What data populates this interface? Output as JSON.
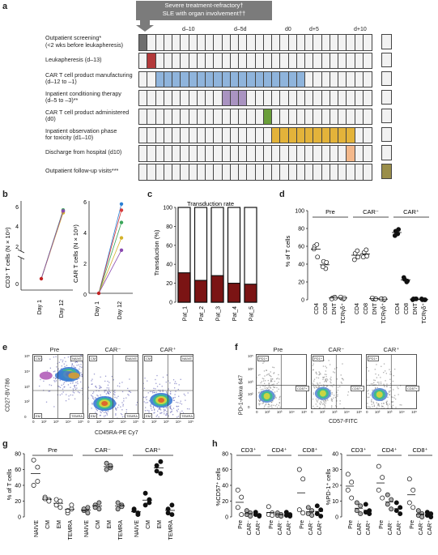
{
  "panels": {
    "a": "a",
    "b": "b",
    "c": "c",
    "d": "d",
    "e": "e",
    "f": "f",
    "g": "g",
    "h": "h"
  },
  "panel_a": {
    "header_line1": "Severe treatment-refractory†",
    "header_line2": "SLE with organ involvement††",
    "days": [
      "d–10",
      "d–5d",
      "d0",
      "d+5",
      "d+10"
    ],
    "rows": [
      {
        "label1": "Outpatient screening*",
        "label2": "(<2 wks before leukapheresis)",
        "color": "#6e6e6e"
      },
      {
        "label1": "Leukapheresis (d–13)",
        "label2": "",
        "color": "#b3393a"
      },
      {
        "label1": "CAR T cell product manufacturing",
        "label2": "(d–12 to –1)",
        "color": "#8fb4dc"
      },
      {
        "label1": "Inpatient conditioning therapy",
        "label2": "(d–5 to –3)**",
        "color": "#a993c1"
      },
      {
        "label1": "CAR T cell product administered",
        "label2": "(d0)",
        "color": "#6a9e3a"
      },
      {
        "label1": "Inpatient observation phase",
        "label2": "for toxicity (d1–10)",
        "color": "#e3b33a"
      },
      {
        "label1": "Discharge from hospital (d10)",
        "label2": "",
        "color": "#f3b88b"
      },
      {
        "label1": "Outpatient follow-up visits***",
        "label2": "",
        "color": "#9a8e4a"
      }
    ]
  },
  "panel_b": {
    "left_ylabel": "CD3⁺ T cells (N × 10⁹)",
    "right_ylabel": "CAR T cells (N × 10⁸)",
    "left_ticks": [
      "0",
      "2",
      "4",
      "6"
    ],
    "right_ticks": [
      "0",
      "2",
      "4",
      "6"
    ],
    "x_categories": [
      "Day 1",
      "Day 12"
    ]
  },
  "panel_c": {
    "title": "Transduction rate",
    "ylabel": "Transduction (%)",
    "yticks": [
      "0",
      "20",
      "40",
      "60",
      "80",
      "100"
    ],
    "categories": [
      "Pat_1",
      "Pat_2",
      "Pat_3",
      "Pat_4",
      "Pat_5"
    ]
  },
  "panel_d": {
    "ylabel": "% of T cells",
    "yticks": [
      "0",
      "20",
      "40",
      "60",
      "80",
      "100"
    ],
    "groups": [
      "Pre",
      "CAR⁻",
      "CAR⁺"
    ],
    "xcats": [
      "CD4",
      "CD8",
      "DNT",
      "TCRγδ⁺"
    ]
  },
  "panel_e": {
    "ylabel": "CD27-BV786",
    "xlabel": "CD45RA-PE Cy7",
    "titles": [
      "Pre",
      "CAR⁻",
      "CAR⁺"
    ],
    "gates": [
      "CM",
      "NAIVE",
      "EM",
      "TEMRA"
    ],
    "ticks": [
      "0",
      "10²",
      "10³",
      "10⁴",
      "10⁵"
    ]
  },
  "panel_f": {
    "ylabel": "PD-1-Alexa 647",
    "xlabel": "CD57-FITC",
    "titles": [
      "Pre",
      "CAR⁻",
      "CAR⁺"
    ],
    "gates": [
      "PD1+",
      "CD57+"
    ],
    "ticks": [
      "0",
      "10²",
      "10³",
      "10⁴",
      "10⁵"
    ]
  },
  "panel_g": {
    "ylabel": "% of T cells",
    "yticks": [
      "0",
      "20",
      "40",
      "60",
      "80"
    ],
    "groups": [
      "Pre",
      "CAR⁻",
      "CAR⁺"
    ],
    "xcats": [
      "NAIVE",
      "CM",
      "EM",
      "TEMRA"
    ]
  },
  "panel_h": {
    "left_ylabel": "%CD57⁺ cells",
    "right_ylabel": "%PD-1⁺ cells",
    "left_yticks": [
      "0",
      "20",
      "40",
      "60",
      "80"
    ],
    "right_yticks": [
      "0",
      "10",
      "20",
      "30",
      "40"
    ],
    "groups": [
      "CD3⁺",
      "CD4⁺",
      "CD8⁺"
    ],
    "xcats": [
      "Pre",
      "CAR⁻",
      "CAR⁺"
    ]
  },
  "chart_data": [
    {
      "type": "line",
      "panel": "b-left",
      "x": [
        "Day 1",
        "Day 12"
      ],
      "ylim": [
        0,
        6.5
      ],
      "series": [
        {
          "values": [
            0.1,
            5.8
          ]
        },
        {
          "values": [
            0.1,
            5.7
          ]
        },
        {
          "values": [
            0.1,
            5.9
          ]
        },
        {
          "values": [
            0.1,
            5.6
          ]
        },
        {
          "values": [
            0.1,
            5.8
          ]
        }
      ]
    },
    {
      "type": "line",
      "panel": "b-right",
      "x": [
        "Day 1",
        "Day 12"
      ],
      "ylim": [
        0,
        6.5
      ],
      "series": [
        {
          "values": [
            0,
            5.8
          ]
        },
        {
          "values": [
            0,
            5.4
          ]
        },
        {
          "values": [
            0,
            4.6
          ]
        },
        {
          "values": [
            0,
            3.6
          ]
        },
        {
          "values": [
            0,
            2.8
          ]
        }
      ]
    },
    {
      "type": "bar",
      "panel": "c",
      "categories": [
        "Pat_1",
        "Pat_2",
        "Pat_3",
        "Pat_4",
        "Pat_5"
      ],
      "values": [
        31,
        23,
        28,
        20,
        19
      ],
      "ylim": [
        0,
        100
      ]
    },
    {
      "type": "scatter",
      "panel": "d",
      "ylim": [
        0,
        100
      ],
      "series": [
        {
          "name": "Pre",
          "values": {
            "CD4": [
              60,
              62,
              57,
              48
            ],
            "CD8": [
              43,
              35,
              37,
              42
            ],
            "DNT": [
              2,
              3,
              1,
              2
            ],
            "TCRγδ⁺": [
              2,
              1,
              3,
              2
            ]
          }
        },
        {
          "name": "CAR⁻",
          "values": {
            "CD4": [
              52,
              55,
              45,
              48
            ],
            "CD8": [
              53,
              56,
              48,
              49
            ],
            "DNT": [
              1,
              1,
              2,
              1
            ],
            "TCRγδ⁺": [
              1,
              0,
              1,
              1
            ]
          }
        },
        {
          "name": "CAR⁺",
          "values": {
            "CD4": [
              77,
              74,
              72,
              79
            ],
            "CD8": [
              23,
              20,
              25,
              21
            ],
            "DNT": [
              1,
              1,
              0,
              1
            ],
            "TCRγδ⁺": [
              0,
              0,
              1,
              0
            ]
          }
        }
      ]
    },
    {
      "type": "scatter",
      "panel": "g",
      "ylim": [
        0,
        80
      ],
      "series": [
        {
          "name": "Pre",
          "values": {
            "NAIVE": [
              72,
              63,
              40,
              45
            ],
            "CM": [
              25,
              22,
              23,
              20
            ],
            "EM": [
              15,
              12,
              22,
              20
            ],
            "TEMRA": [
              5,
              10,
              8,
              15
            ]
          }
        },
        {
          "name": "CAR⁻",
          "values": {
            "NAIVE": [
              8,
              5,
              10,
              12
            ],
            "CM": [
              15,
              10,
              12,
              18
            ],
            "EM": [
              60,
              62,
              68,
              65
            ],
            "TEMRA": [
              10,
              15,
              18,
              13
            ]
          }
        },
        {
          "name": "CAR⁺",
          "values": {
            "NAIVE": [
              8,
              5,
              10,
              3
            ],
            "CM": [
              15,
              22,
              30,
              18
            ],
            "EM": [
              58,
              55,
              65,
              70
            ],
            "TEMRA": [
              5,
              3,
              10,
              15
            ]
          }
        }
      ]
    },
    {
      "type": "scatter",
      "panel": "h-left",
      "ylabel": "%CD57⁺ cells",
      "ylim": [
        0,
        80
      ],
      "series": [
        {
          "name": "CD3⁺",
          "values": {
            "Pre": [
              34,
              25,
              12,
              3
            ],
            "CAR⁻": [
              8,
              5,
              3,
              1
            ],
            "CAR⁺": [
              6,
              2,
              3,
              1
            ]
          }
        },
        {
          "name": "CD4⁺",
          "values": {
            "Pre": [
              13,
              5,
              3,
              2
            ],
            "CAR⁻": [
              5,
              3,
              2,
              1
            ],
            "CAR⁺": [
              6,
              3,
              2,
              1
            ]
          }
        },
        {
          "name": "CD8⁺",
          "values": {
            "Pre": [
              60,
              48,
              9,
              5
            ],
            "CAR⁻": [
              12,
              8,
              4,
              2
            ],
            "CAR⁺": [
              14,
              9,
              4,
              1
            ]
          }
        }
      ]
    },
    {
      "type": "scatter",
      "panel": "h-right",
      "ylabel": "%PD-1⁺ cells",
      "ylim": [
        0,
        40
      ],
      "series": [
        {
          "name": "CD3⁺",
          "values": {
            "Pre": [
              27,
              22,
              17,
              12
            ],
            "CAR⁻": [
              9,
              7,
              4,
              2
            ],
            "CAR⁺": [
              8,
              4,
              3,
              2
            ]
          }
        },
        {
          "name": "CD4⁺",
          "values": {
            "Pre": [
              32,
              25,
              17,
              12
            ],
            "CAR⁻": [
              14,
              11,
              8,
              5
            ],
            "CAR⁺": [
              9,
              6,
              4,
              2
            ]
          }
        },
        {
          "name": "CD8⁺",
          "values": {
            "Pre": [
              24,
              17,
              9,
              6
            ],
            "CAR⁻": [
              4,
              2,
              1,
              0
            ],
            "CAR⁺": [
              3,
              2,
              1,
              0
            ]
          }
        }
      ]
    }
  ]
}
